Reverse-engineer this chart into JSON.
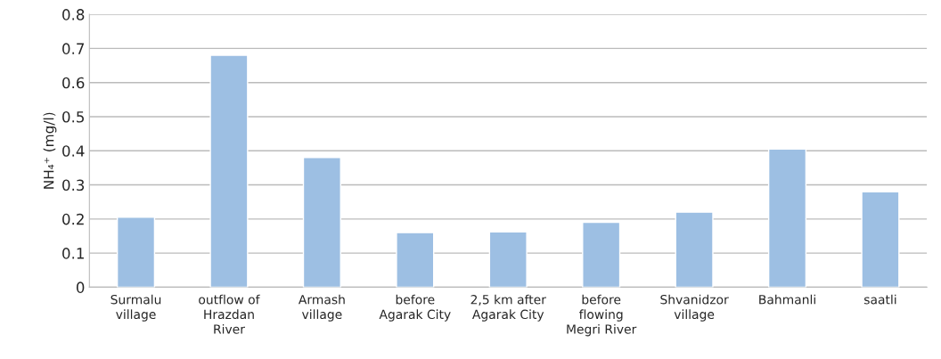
{
  "chart_data": {
    "type": "bar",
    "ylabel": "NH₄⁺ (mg/l)",
    "categories": [
      "Surmalu\nvillage",
      "outflow of\nHrazdan\nRiver",
      "Armash\nvillage",
      "before\nAgarak City",
      "2,5 km after\nAgarak City",
      "before\nflowing\nMegri River",
      "Shvanidzor\nvillage",
      "Bahmanli",
      "saatli"
    ],
    "values": [
      0.205,
      0.68,
      0.38,
      0.16,
      0.162,
      0.19,
      0.22,
      0.405,
      0.28
    ],
    "color": "#9dbfe3",
    "ylim": [
      0,
      0.8
    ],
    "yticks": [
      0,
      0.1,
      0.2,
      0.3,
      0.4,
      0.5,
      0.6,
      0.7,
      0.8
    ],
    "grid": "y"
  }
}
